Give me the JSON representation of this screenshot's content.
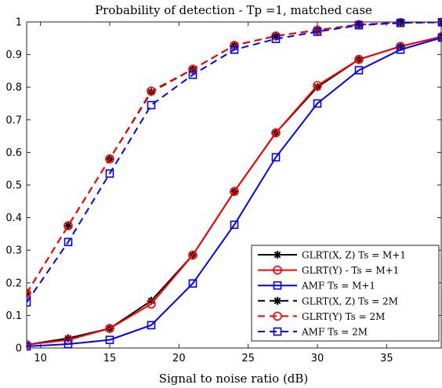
{
  "chart_data": {
    "type": "line",
    "title": "Probability of detection - Tp =1, matched case",
    "xlabel": "Signal to noise ratio (dB)",
    "ylabel": "",
    "xlim": [
      9,
      39
    ],
    "ylim": [
      0,
      1
    ],
    "xticks": [
      10,
      15,
      20,
      25,
      30,
      35
    ],
    "yticks": [
      0,
      0.1,
      0.2,
      0.3,
      0.4,
      0.5,
      0.6,
      0.7,
      0.8,
      0.9,
      1
    ],
    "grid": false,
    "legend_position": "bottom-right",
    "x": [
      9,
      12,
      15,
      18,
      21,
      24,
      27,
      30,
      33,
      36,
      39
    ],
    "series": [
      {
        "name": "GLRT(X, Z) Ts = M+1",
        "color": "#000000",
        "dash": "solid",
        "marker": "asterisk",
        "values": [
          0.01,
          0.03,
          0.06,
          0.145,
          0.285,
          0.48,
          0.66,
          0.8,
          0.885,
          0.925,
          0.955
        ]
      },
      {
        "name": "GLRT(Y) - Ts = M+1",
        "color": "#ff0000",
        "dash": "solid",
        "marker": "circle",
        "values": [
          0.01,
          0.025,
          0.06,
          0.135,
          0.285,
          0.48,
          0.66,
          0.805,
          0.885,
          0.925,
          0.955
        ]
      },
      {
        "name": "AMF Ts = M+1",
        "color": "#0000ff",
        "dash": "solid",
        "marker": "square",
        "values": [
          0.005,
          0.012,
          0.025,
          0.07,
          0.198,
          0.378,
          0.585,
          0.75,
          0.852,
          0.915,
          0.952
        ]
      },
      {
        "name": "GLRT(X, Z) Ts = 2M",
        "color": "#000000",
        "dash": "dashed",
        "marker": "asterisk",
        "values": [
          0.168,
          0.375,
          0.58,
          0.785,
          0.855,
          0.928,
          0.957,
          0.975,
          0.992,
          0.998,
          0.999
        ]
      },
      {
        "name": "GLRT(Y) Ts = 2M",
        "color": "#ff0000",
        "dash": "dashed",
        "marker": "circle",
        "values": [
          0.168,
          0.375,
          0.58,
          0.788,
          0.855,
          0.928,
          0.957,
          0.975,
          0.992,
          0.998,
          0.999
        ]
      },
      {
        "name": "AMF Ts = 2M",
        "color": "#0000ff",
        "dash": "dashed",
        "marker": "square",
        "values": [
          0.14,
          0.325,
          0.535,
          0.745,
          0.838,
          0.915,
          0.948,
          0.97,
          0.99,
          0.997,
          0.999
        ]
      }
    ]
  }
}
